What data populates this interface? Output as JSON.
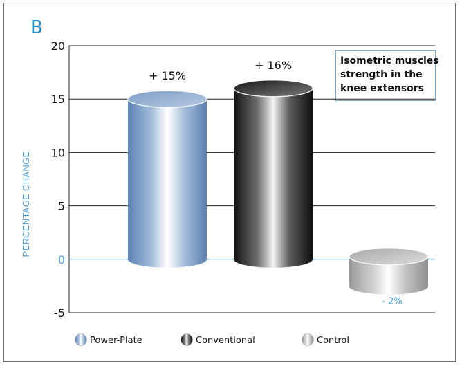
{
  "panel_label": "B",
  "note": {
    "lines": [
      "Isometric muscles",
      "strength in the",
      "knee extensors"
    ]
  },
  "colors": {
    "axis_label": "#4a9bd0",
    "zero_line": "#4a9bd0",
    "grid": "#222222",
    "frame": "#6b6b6b",
    "note_border": "#79a7c8"
  },
  "chart_data": {
    "type": "bar",
    "style": "3d-cylinder",
    "categories": [
      "Power-Plate",
      "Conventional",
      "Control"
    ],
    "values": [
      15,
      16,
      -2
    ],
    "value_labels": [
      "+ 15%",
      "+ 16%",
      "- 2%"
    ],
    "ylabel": "PERCENTAGE CHANGE",
    "ylim": [
      -5,
      20
    ],
    "yticks": [
      -5,
      0,
      5,
      10,
      15,
      20
    ],
    "ytick_labels": [
      "-5",
      "0",
      "5",
      "10",
      "15",
      "20"
    ],
    "grid": true,
    "legend": {
      "placement": "bottom",
      "entries": [
        {
          "label": "Power-Plate",
          "style": "blue"
        },
        {
          "label": "Conventional",
          "style": "black"
        },
        {
          "label": "Control",
          "style": "grey"
        }
      ]
    }
  }
}
